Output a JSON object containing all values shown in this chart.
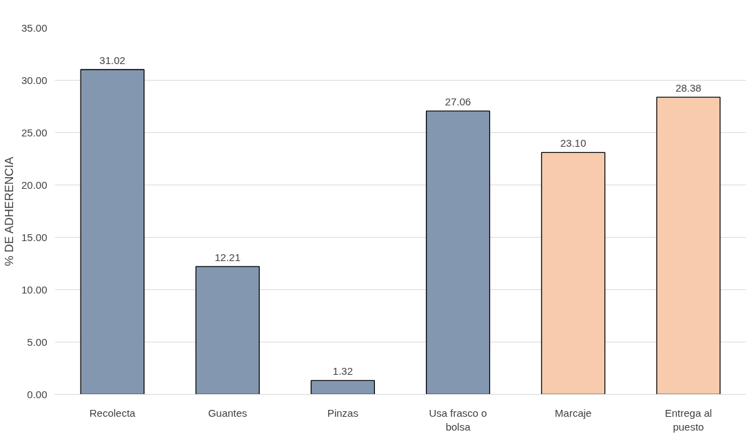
{
  "chart_data": {
    "type": "bar",
    "ylabel": "% DE ADHERENCIA",
    "categories": [
      "Recolecta",
      "Guantes",
      "Pinzas",
      "Usa frasco o bolsa",
      "Marcaje",
      "Entrega al puesto"
    ],
    "values": [
      31.02,
      12.21,
      1.32,
      27.06,
      23.1,
      28.38
    ],
    "value_labels": [
      "31.02",
      "12.21",
      "1.32",
      "27.06",
      "23.10",
      "28.38"
    ],
    "colors": [
      "#8497b0",
      "#8497b0",
      "#8497b0",
      "#8497b0",
      "#f8cbad",
      "#f8cbad"
    ],
    "ylim": [
      0,
      35
    ],
    "yticks": [
      {
        "value": 0,
        "label": "0.00"
      },
      {
        "value": 5,
        "label": "5.00"
      },
      {
        "value": 10,
        "label": "10.00"
      },
      {
        "value": 15,
        "label": "15.00"
      },
      {
        "value": 20,
        "label": "20.00"
      },
      {
        "value": 25,
        "label": "25.00"
      },
      {
        "value": 30,
        "label": "30.00"
      },
      {
        "value": 35,
        "label": "35.00"
      }
    ],
    "grid": "y"
  }
}
